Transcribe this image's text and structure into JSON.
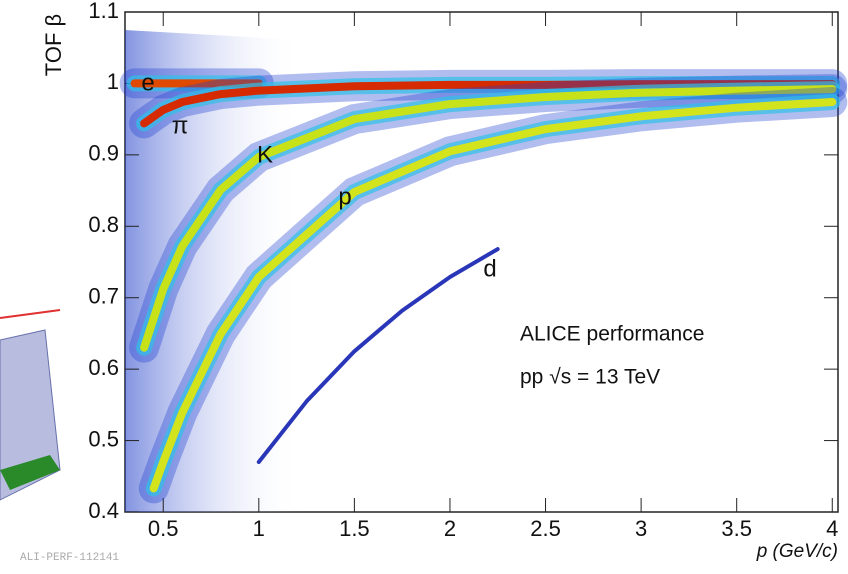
{
  "chart_data": {
    "type": "line",
    "y_label": "TOF β",
    "x_label": "p (GeV/c)",
    "annotations": [
      "ALICE performance",
      "pp √s = 13 TeV"
    ],
    "watermark": "ALI-PERF-112141",
    "xlim": [
      0.3,
      4.03
    ],
    "ylim": [
      0.4,
      1.1
    ],
    "xticks": [
      0.5,
      1,
      1.5,
      2,
      2.5,
      3,
      3.5,
      4
    ],
    "yticks": [
      0.4,
      0.5,
      0.6,
      0.7,
      0.8,
      0.9,
      1,
      1.1
    ],
    "series": [
      {
        "name": "e",
        "color": "#e04a00",
        "x": [
          0.35,
          0.4,
          0.5,
          0.6,
          0.8,
          1.0
        ],
        "values": [
          1.0,
          1.0,
          1.0,
          1.0,
          1.0,
          1.0
        ]
      },
      {
        "name": "π",
        "color": "#d62a00",
        "x": [
          0.4,
          0.5,
          0.6,
          0.8,
          1,
          1.5,
          2,
          2.5,
          3,
          3.5,
          4
        ],
        "values": [
          0.944,
          0.963,
          0.974,
          0.985,
          0.99,
          0.996,
          0.998,
          0.998,
          0.999,
          0.999,
          0.999
        ]
      },
      {
        "name": "K",
        "color": "#c8e21a",
        "x": [
          0.4,
          0.5,
          0.6,
          0.8,
          1,
          1.5,
          2,
          2.5,
          3,
          3.5,
          4
        ],
        "values": [
          0.63,
          0.712,
          0.772,
          0.851,
          0.897,
          0.95,
          0.971,
          0.981,
          0.987,
          0.99,
          0.992
        ]
      },
      {
        "name": "p",
        "color": "#d4e41c",
        "x": [
          0.45,
          0.5,
          0.6,
          0.8,
          1,
          1.5,
          2,
          2.5,
          3,
          3.5,
          4
        ],
        "values": [
          0.433,
          0.47,
          0.539,
          0.649,
          0.729,
          0.848,
          0.905,
          0.936,
          0.954,
          0.966,
          0.974
        ]
      },
      {
        "name": "d",
        "color": "#2a36b8",
        "x": [
          1,
          1.25,
          1.5,
          1.75,
          2,
          2.25
        ],
        "values": [
          0.47,
          0.555,
          0.625,
          0.682,
          0.729,
          0.768
        ]
      }
    ]
  }
}
